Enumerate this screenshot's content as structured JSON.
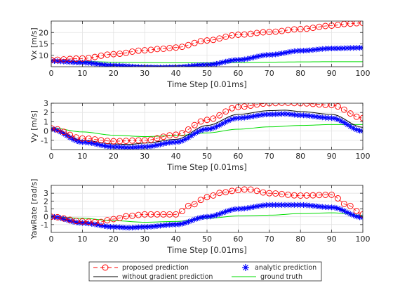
{
  "legend": {
    "placement": "bottom-center",
    "entries": [
      "proposed prediction",
      "analytic prediction",
      "without gradient prediction",
      "ground truth"
    ]
  },
  "colors": {
    "proposed": "#ff0000",
    "analytic": "#0000ff",
    "without_gradient": "#000000",
    "ground_truth": "#00dd00",
    "grid": "#e3e3e3",
    "axis": "#262626"
  },
  "chart_data": [
    {
      "type": "line",
      "xlabel": "Time Step [0.01ms]",
      "ylabel": "Vx [m/s]",
      "xlim": [
        0,
        100
      ],
      "ylim": [
        5,
        25
      ],
      "xticks": [
        0,
        10,
        20,
        30,
        40,
        50,
        60,
        70,
        80,
        90,
        100
      ],
      "yticks": [
        10,
        15,
        20
      ],
      "grid": true,
      "series": [
        {
          "name": "proposed prediction",
          "style": "red dashed line with circle markers",
          "x": [
            0,
            10,
            20,
            30,
            35,
            40,
            50,
            60,
            70,
            80,
            90,
            95,
            100
          ],
          "y": [
            8,
            8.6,
            10.5,
            12.2,
            12.8,
            13.4,
            16.5,
            19,
            20.2,
            21.5,
            23,
            23.8,
            24.2
          ]
        },
        {
          "name": "analytic prediction",
          "style": "blue asterisk markers",
          "x": [
            0,
            10,
            20,
            30,
            35,
            40,
            50,
            60,
            70,
            80,
            90,
            100
          ],
          "y": [
            7.5,
            6.8,
            5.5,
            4.8,
            4.7,
            4.8,
            5.8,
            8,
            10.2,
            12,
            13,
            13.3
          ]
        },
        {
          "name": "without gradient prediction",
          "style": "black solid line",
          "x": [
            0,
            10,
            20,
            30,
            35,
            40,
            50,
            60,
            70,
            80,
            90,
            100
          ],
          "y": [
            7.6,
            7,
            6,
            5.4,
            5.3,
            5.4,
            6.2,
            8.2,
            10.3,
            12,
            13,
            13.4
          ]
        },
        {
          "name": "ground truth",
          "style": "green solid line",
          "x": [
            0,
            10,
            20,
            30,
            40,
            50,
            60,
            70,
            80,
            90,
            100
          ],
          "y": [
            7.5,
            7.3,
            7,
            6.8,
            6.7,
            6.7,
            6.8,
            7,
            7.1,
            7.2,
            7.2
          ]
        }
      ]
    },
    {
      "type": "line",
      "xlabel": "Time Step [0.01ms]",
      "ylabel": "Vy [m/s]",
      "xlim": [
        0,
        100
      ],
      "ylim": [
        -2,
        3
      ],
      "xticks": [
        0,
        10,
        20,
        30,
        40,
        50,
        60,
        70,
        80,
        90,
        100
      ],
      "yticks": [
        -1,
        0,
        1,
        2,
        3
      ],
      "grid": true,
      "series": [
        {
          "name": "proposed prediction",
          "style": "red dashed line with circle markers",
          "x": [
            0,
            10,
            20,
            30,
            40,
            50,
            60,
            70,
            75,
            80,
            90,
            100
          ],
          "y": [
            0.3,
            -0.8,
            -1.1,
            -1,
            -0.4,
            1.2,
            2.6,
            3,
            3.05,
            3,
            2.8,
            1.4
          ]
        },
        {
          "name": "analytic prediction",
          "style": "blue asterisk markers",
          "x": [
            0,
            10,
            20,
            25,
            30,
            40,
            50,
            60,
            70,
            75,
            80,
            90,
            100
          ],
          "y": [
            0.2,
            -1.2,
            -1.7,
            -1.8,
            -1.7,
            -1.2,
            0.2,
            1.4,
            1.8,
            1.85,
            1.7,
            1.4,
            0
          ]
        },
        {
          "name": "without gradient prediction",
          "style": "black solid line",
          "x": [
            0,
            10,
            20,
            25,
            30,
            40,
            50,
            60,
            70,
            75,
            80,
            90,
            100
          ],
          "y": [
            0.3,
            -1,
            -1.4,
            -1.45,
            -1.3,
            -0.9,
            0.6,
            1.8,
            2.2,
            2.25,
            2.1,
            1.8,
            0.4
          ]
        },
        {
          "name": "ground truth",
          "style": "green solid line",
          "x": [
            0,
            10,
            20,
            30,
            40,
            50,
            60,
            70,
            80,
            90,
            100
          ],
          "y": [
            0.35,
            -0.1,
            -0.45,
            -0.6,
            -0.5,
            -0.2,
            0.2,
            0.45,
            0.6,
            0.7,
            0.7
          ]
        }
      ]
    },
    {
      "type": "line",
      "xlabel": "Time Step [0.01ms]",
      "ylabel": "YawRate [rad/s]",
      "xlim": [
        0,
        100
      ],
      "ylim": [
        -2,
        4
      ],
      "xticks": [
        0,
        10,
        20,
        30,
        40,
        50,
        60,
        70,
        80,
        90,
        100
      ],
      "yticks": [
        -1,
        0,
        1,
        2,
        3
      ],
      "grid": true,
      "series": [
        {
          "name": "proposed prediction",
          "style": "red dashed line with circle markers",
          "x": [
            0,
            10,
            15,
            20,
            25,
            30,
            40,
            45,
            50,
            55,
            60,
            63,
            70,
            80,
            90,
            95,
            100
          ],
          "y": [
            0,
            -0.6,
            -0.7,
            -0.3,
            0.1,
            0.3,
            0.3,
            1.5,
            2.5,
            3.1,
            3.4,
            3.5,
            3,
            2.7,
            2.8,
            1.5,
            0.3
          ]
        },
        {
          "name": "analytic prediction",
          "style": "blue asterisk markers",
          "x": [
            0,
            10,
            20,
            25,
            30,
            40,
            50,
            60,
            70,
            80,
            90,
            100
          ],
          "y": [
            0,
            -0.8,
            -1.3,
            -1.4,
            -1.3,
            -1,
            0,
            1,
            1.5,
            1.5,
            1.2,
            -0.1
          ]
        },
        {
          "name": "without gradient prediction",
          "style": "black solid line",
          "x": [
            0,
            10,
            20,
            25,
            30,
            40,
            50,
            60,
            70,
            80,
            90,
            100
          ],
          "y": [
            0,
            -0.75,
            -1.2,
            -1.3,
            -1.2,
            -0.9,
            0.1,
            1,
            1.5,
            1.5,
            1.2,
            0
          ]
        },
        {
          "name": "ground truth",
          "style": "green solid line",
          "x": [
            0,
            10,
            20,
            30,
            40,
            50,
            60,
            70,
            80,
            90,
            100
          ],
          "y": [
            0,
            -0.2,
            -0.5,
            -0.7,
            -0.6,
            -0.2,
            0.1,
            0.2,
            0.4,
            0.5,
            0.2
          ]
        }
      ]
    }
  ]
}
